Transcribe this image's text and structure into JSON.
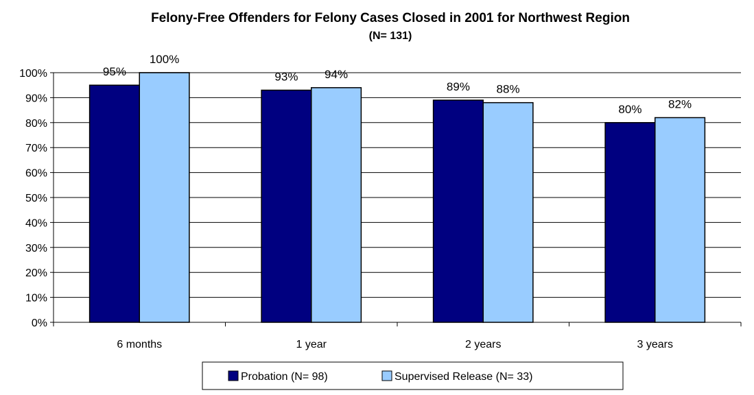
{
  "chart_data": {
    "type": "bar",
    "title": "Felony-Free Offenders for Felony Cases Closed in 2001 for Northwest Region",
    "subtitle": "(N= 131)",
    "xlabel": "",
    "ylabel": "",
    "categories": [
      "6 months",
      "1 year",
      "2 years",
      "3 years"
    ],
    "series": [
      {
        "name": "Probation (N= 98)",
        "values": [
          95,
          93,
          89,
          80
        ],
        "labels": [
          "95%",
          "93%",
          "89%",
          "80%"
        ],
        "color": "#000080"
      },
      {
        "name": "Supervised Release (N= 33)",
        "values": [
          100,
          94,
          88,
          82
        ],
        "labels": [
          "100%",
          "94%",
          "88%",
          "82%"
        ],
        "color": "#99ccff"
      }
    ],
    "ylim": [
      0,
      100
    ],
    "yticks": [
      "0%",
      "10%",
      "20%",
      "30%",
      "40%",
      "50%",
      "60%",
      "70%",
      "80%",
      "90%",
      "100%"
    ],
    "grid": true,
    "legend_position": "bottom"
  }
}
